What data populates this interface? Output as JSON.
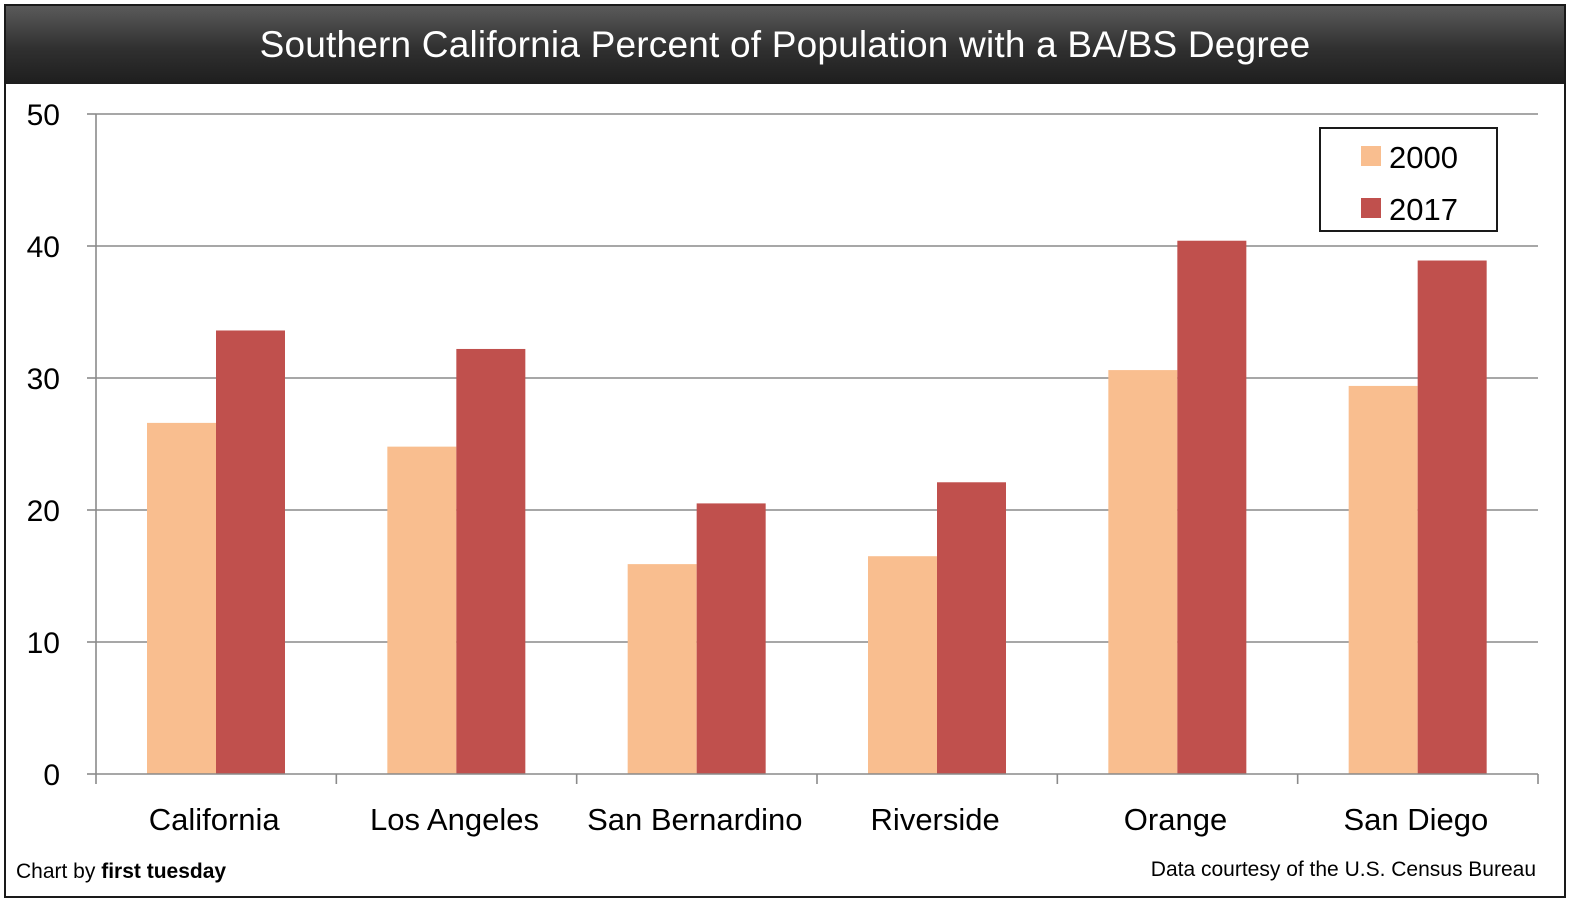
{
  "chart_data": {
    "type": "bar",
    "title": "Southern California Percent of Population with a BA/BS Degree",
    "xlabel": "",
    "ylabel": "",
    "ylim": [
      0,
      50
    ],
    "yticks": [
      0,
      10,
      20,
      30,
      40,
      50
    ],
    "grid": true,
    "legend_position": "top-right",
    "categories": [
      "California",
      "Los Angeles",
      "San Bernardino",
      "Riverside",
      "Orange",
      "San Diego"
    ],
    "series": [
      {
        "name": "2000",
        "color": "#f9be8f",
        "values": [
          26.6,
          24.8,
          15.9,
          16.5,
          30.6,
          29.4
        ]
      },
      {
        "name": "2017",
        "color": "#c0504d",
        "values": [
          33.6,
          32.2,
          20.5,
          22.1,
          40.4,
          38.9
        ]
      }
    ]
  },
  "footer": {
    "left_prefix": "Chart by ",
    "left_brand": "first tuesday",
    "right": "Data courtesy of the U.S. Census Bureau"
  }
}
